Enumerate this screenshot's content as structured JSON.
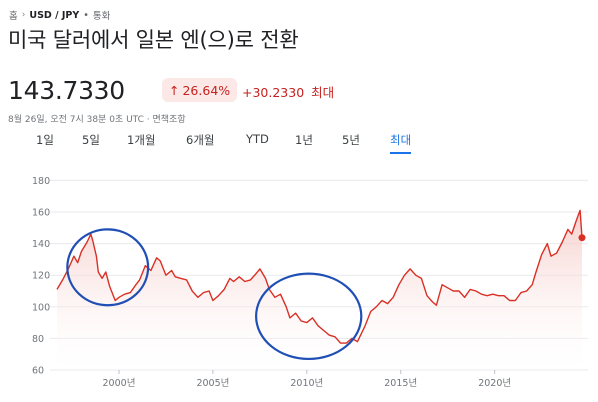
{
  "breadcrumb": {
    "home": "홈",
    "pair": "USD / JPY",
    "separator": "•",
    "category": "통화"
  },
  "title": "미국 달러에서 일본 엔(으)로 전환",
  "price": "143.7330",
  "change": {
    "percent": "26.64%",
    "absolute": "+30.2330",
    "period": "최대"
  },
  "timestamp": "8월 26일, 오전 7시 38분 0초 UTC · 면책조항",
  "tabs": [
    {
      "label": "1일",
      "active": false
    },
    {
      "label": "5일",
      "active": false
    },
    {
      "label": "1개월",
      "active": false
    },
    {
      "label": "6개월",
      "active": false
    },
    {
      "label": "YTD",
      "active": false
    },
    {
      "label": "1년",
      "active": false
    },
    {
      "label": "5년",
      "active": false
    },
    {
      "label": "최대",
      "active": true
    }
  ],
  "colors": {
    "line": "#d93025",
    "area_top": "#f4c7c3",
    "circle": "#1f4fb5",
    "grid": "#e8eaed",
    "active_tab": "#1a73e8"
  },
  "chart_data": {
    "type": "area",
    "y_ticks": [
      180,
      160,
      140,
      120,
      100,
      80,
      60
    ],
    "x_ticks": [
      "2000년",
      "2005년",
      "2010년",
      "2015년",
      "2020년"
    ],
    "ylim": [
      60,
      185
    ],
    "xlim": [
      1996.7,
      2024.65
    ],
    "grid": true,
    "series": [
      {
        "x": [
          1996.7,
          1997.0,
          1997.3,
          1997.6,
          1997.8,
          1998.0,
          1998.3,
          1998.5,
          1998.6,
          1998.8,
          1998.9,
          1999.1,
          1999.3,
          1999.5,
          1999.8,
          2000.0,
          2000.3,
          2000.6,
          2000.9,
          2001.1,
          2001.4,
          2001.7,
          2002.0,
          2002.2,
          2002.5,
          2002.8,
          2003.0,
          2003.3,
          2003.6,
          2003.9,
          2004.2,
          2004.5,
          2004.8,
          2005.0,
          2005.3,
          2005.6,
          2005.9,
          2006.1,
          2006.4,
          2006.7,
          2007.0,
          2007.3,
          2007.5,
          2007.8,
          2008.0,
          2008.3,
          2008.6,
          2008.9,
          2009.1,
          2009.4,
          2009.7,
          2010.0,
          2010.3,
          2010.6,
          2010.9,
          2011.2,
          2011.5,
          2011.8,
          2012.1,
          2012.4,
          2012.7,
          2012.9,
          2013.1,
          2013.4,
          2013.7,
          2014.0,
          2014.3,
          2014.6,
          2014.9,
          2015.2,
          2015.5,
          2015.8,
          2016.1,
          2016.4,
          2016.7,
          2016.9,
          2017.2,
          2017.5,
          2017.8,
          2018.1,
          2018.4,
          2018.7,
          2019.0,
          2019.3,
          2019.6,
          2019.9,
          2020.2,
          2020.5,
          2020.8,
          2021.1,
          2021.4,
          2021.7,
          2022.0,
          2022.2,
          2022.5,
          2022.8,
          2023.0,
          2023.3,
          2023.6,
          2023.9,
          2024.1,
          2024.3,
          2024.45,
          2024.55,
          2024.65
        ],
        "values": [
          111,
          117,
          124,
          132,
          128,
          135,
          141,
          146,
          142,
          132,
          122,
          118,
          122,
          113,
          104,
          106,
          108,
          109,
          114,
          117,
          126,
          123,
          131,
          129,
          120,
          123,
          119,
          118,
          117,
          110,
          106,
          109,
          110,
          104,
          107,
          111,
          118,
          116,
          119,
          116,
          117,
          121,
          124,
          118,
          111,
          106,
          108,
          100,
          93,
          96,
          91,
          90,
          93,
          88,
          85,
          82,
          81,
          77,
          77,
          80,
          78,
          83,
          88,
          97,
          100,
          104,
          102,
          106,
          114,
          120,
          124,
          120,
          118,
          107,
          103,
          101,
          114,
          112,
          110,
          110,
          106,
          111,
          110,
          108,
          107,
          108,
          107,
          107,
          104,
          104,
          109,
          110,
          114,
          122,
          133,
          140,
          132,
          134,
          141,
          149,
          146,
          153,
          158,
          161,
          143.73
        ]
      }
    ],
    "annotations": [
      {
        "type": "circle",
        "cx_year": 1999.4,
        "cy": 125,
        "rx_years": 2.15,
        "ry": 24
      },
      {
        "type": "circle",
        "cx_year": 2010.1,
        "cy": 94,
        "rx_years": 2.8,
        "ry": 27
      }
    ]
  }
}
